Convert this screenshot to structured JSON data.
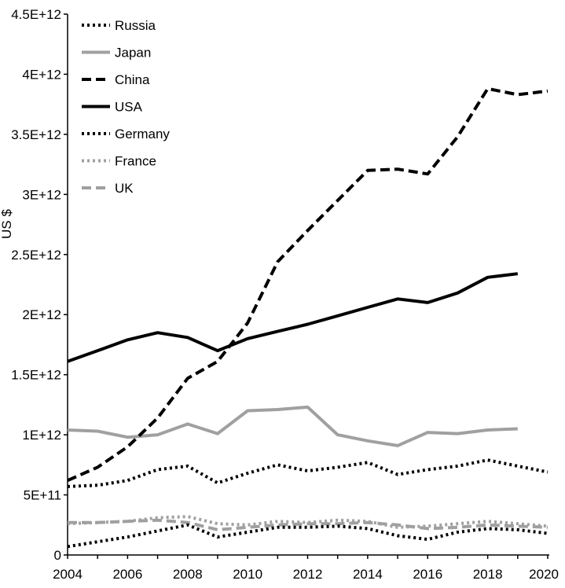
{
  "chart_data": {
    "type": "line",
    "title": "",
    "xlabel": "",
    "ylabel": "US $",
    "xlim": [
      2004,
      2020
    ],
    "ylim": [
      0,
      4500000000000
    ],
    "x_ticks": [
      "2004",
      "2006",
      "2008",
      "2010",
      "2012",
      "2014",
      "2016",
      "2018",
      "2020"
    ],
    "y_ticks": [
      "0",
      "5E+11",
      "1E+12",
      "1.5E+12",
      "2E+12",
      "2.5E+12",
      "3E+12",
      "3.5E+12",
      "4E+12",
      "4.5E+12"
    ],
    "grid": false,
    "legend_position": "top-left",
    "series": [
      {
        "name": "Russia",
        "style": "dotted",
        "color": "#000000",
        "x": [
          2004,
          2005,
          2006,
          2007,
          2008,
          2009,
          2010,
          2011,
          2012,
          2013,
          2014,
          2015,
          2016,
          2017,
          2018,
          2019,
          2020
        ],
        "values": [
          70000000000,
          110000000000,
          150000000000,
          200000000000,
          250000000000,
          150000000000,
          190000000000,
          230000000000,
          230000000000,
          240000000000,
          220000000000,
          160000000000,
          130000000000,
          190000000000,
          220000000000,
          210000000000,
          180000000000
        ]
      },
      {
        "name": "Japan",
        "style": "solid",
        "color": "#a0a0a0",
        "x": [
          2004,
          2005,
          2006,
          2007,
          2008,
          2009,
          2010,
          2011,
          2012,
          2013,
          2014,
          2015,
          2016,
          2017,
          2018,
          2019
        ],
        "values": [
          1040000000000,
          1030000000000,
          980000000000,
          1000000000000,
          1090000000000,
          1010000000000,
          1200000000000,
          1210000000000,
          1230000000000,
          1000000000000,
          950000000000,
          910000000000,
          1020000000000,
          1010000000000,
          1040000000000,
          1050000000000
        ]
      },
      {
        "name": "China",
        "style": "dashed",
        "color": "#000000",
        "x": [
          2004,
          2005,
          2006,
          2007,
          2008,
          2009,
          2010,
          2011,
          2012,
          2013,
          2014,
          2015,
          2016,
          2017,
          2018,
          2019,
          2020
        ],
        "values": [
          620000000000,
          730000000000,
          900000000000,
          1140000000000,
          1470000000000,
          1610000000000,
          1930000000000,
          2440000000000,
          2700000000000,
          2950000000000,
          3200000000000,
          3210000000000,
          3170000000000,
          3480000000000,
          3880000000000,
          3830000000000,
          3860000000000
        ]
      },
      {
        "name": "USA",
        "style": "solid",
        "color": "#000000",
        "x": [
          2004,
          2005,
          2006,
          2007,
          2008,
          2009,
          2010,
          2011,
          2012,
          2013,
          2014,
          2015,
          2016,
          2017,
          2018,
          2019
        ],
        "values": [
          1610000000000,
          1700000000000,
          1790000000000,
          1850000000000,
          1810000000000,
          1700000000000,
          1800000000000,
          1860000000000,
          1920000000000,
          1990000000000,
          2060000000000,
          2130000000000,
          2100000000000,
          2180000000000,
          2310000000000,
          2340000000000
        ]
      },
      {
        "name": "Germany",
        "style": "dotted",
        "color": "#000000",
        "x": [
          2004,
          2005,
          2006,
          2007,
          2008,
          2009,
          2010,
          2011,
          2012,
          2013,
          2014,
          2015,
          2016,
          2017,
          2018,
          2019,
          2020
        ],
        "values": [
          570000000000,
          580000000000,
          620000000000,
          710000000000,
          740000000000,
          600000000000,
          680000000000,
          750000000000,
          700000000000,
          730000000000,
          770000000000,
          670000000000,
          710000000000,
          740000000000,
          790000000000,
          740000000000,
          690000000000
        ]
      },
      {
        "name": "France",
        "style": "dotted",
        "color": "#a0a0a0",
        "x": [
          2004,
          2005,
          2006,
          2007,
          2008,
          2009,
          2010,
          2011,
          2012,
          2013,
          2014,
          2015,
          2016,
          2017,
          2018,
          2019,
          2020
        ],
        "values": [
          260000000000,
          270000000000,
          280000000000,
          310000000000,
          320000000000,
          260000000000,
          250000000000,
          280000000000,
          270000000000,
          290000000000,
          280000000000,
          230000000000,
          240000000000,
          260000000000,
          280000000000,
          260000000000,
          240000000000
        ]
      },
      {
        "name": "UK",
        "style": "dashed",
        "color": "#a0a0a0",
        "x": [
          2004,
          2005,
          2006,
          2007,
          2008,
          2009,
          2010,
          2011,
          2012,
          2013,
          2014,
          2015,
          2016,
          2017,
          2018,
          2019,
          2020
        ],
        "values": [
          270000000000,
          270000000000,
          280000000000,
          290000000000,
          270000000000,
          210000000000,
          230000000000,
          250000000000,
          260000000000,
          260000000000,
          270000000000,
          250000000000,
          220000000000,
          230000000000,
          250000000000,
          240000000000,
          230000000000
        ]
      }
    ]
  }
}
